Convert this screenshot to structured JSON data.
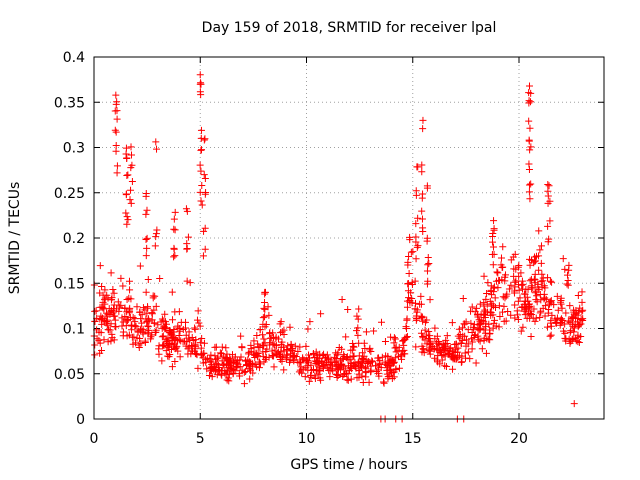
{
  "chart_data": {
    "type": "scatter",
    "title": "Day 159 of 2018, SRMTID for receiver lpal",
    "xlabel": "GPS time / hours",
    "ylabel": "SRMTID / TECUs",
    "xlim": [
      0,
      24
    ],
    "ylim": [
      0,
      0.4
    ],
    "x_ticks": [
      0,
      5,
      10,
      15,
      20
    ],
    "y_ticks": [
      0,
      0.05,
      0.1,
      0.15,
      0.2,
      0.25,
      0.3,
      0.35,
      0.4
    ],
    "x_tick_labels": [
      "0",
      "5",
      "10",
      "15",
      "20"
    ],
    "y_tick_labels": [
      "0",
      "0.05",
      "0.1",
      "0.15",
      "0.2",
      "0.25",
      "0.3",
      "0.35",
      "0.4"
    ],
    "marker": "+",
    "marker_color": "#ff0000",
    "grid": true,
    "series": [
      {
        "name": "SRMTID",
        "trend_profile": {
          "x": [
            0,
            0.5,
            1,
            1.5,
            2,
            2.5,
            3,
            3.5,
            4,
            4.5,
            5,
            5.5,
            6,
            6.5,
            7,
            7.5,
            8,
            8.5,
            9,
            9.5,
            10,
            10.5,
            11,
            11.5,
            12,
            12.5,
            13,
            13.5,
            14,
            14.5,
            15,
            15.5,
            16,
            16.5,
            17,
            17.5,
            18,
            18.5,
            19,
            19.5,
            20,
            20.5,
            21,
            21.5,
            22,
            22.5,
            23
          ],
          "y": [
            0.1,
            0.11,
            0.12,
            0.12,
            0.1,
            0.11,
            0.1,
            0.09,
            0.09,
            0.08,
            0.08,
            0.06,
            0.06,
            0.06,
            0.06,
            0.065,
            0.08,
            0.08,
            0.075,
            0.07,
            0.06,
            0.06,
            0.06,
            0.06,
            0.06,
            0.06,
            0.06,
            0.055,
            0.06,
            0.07,
            0.15,
            0.09,
            0.08,
            0.075,
            0.07,
            0.09,
            0.1,
            0.11,
            0.14,
            0.15,
            0.14,
            0.13,
            0.15,
            0.12,
            0.11,
            0.1,
            0.11
          ]
        },
        "bursts": [
          {
            "x": 1.05,
            "values": [
              0.36,
              0.35,
              0.34,
              0.32,
              0.3,
              0.28
            ]
          },
          {
            "x": 1.55,
            "values": [
              0.29,
              0.3,
              0.27,
              0.25,
              0.23,
              0.22
            ]
          },
          {
            "x": 1.75,
            "values": [
              0.3,
              0.28,
              0.26,
              0.24
            ]
          },
          {
            "x": 2.5,
            "values": [
              0.25,
              0.23,
              0.2,
              0.19
            ]
          },
          {
            "x": 2.9,
            "values": [
              0.305,
              0.21,
              0.2
            ]
          },
          {
            "x": 3.8,
            "values": [
              0.23,
              0.21,
              0.19,
              0.18
            ]
          },
          {
            "x": 4.4,
            "values": [
              0.23,
              0.2,
              0.19
            ]
          },
          {
            "x": 5.05,
            "values": [
              0.38,
              0.37,
              0.36,
              0.32,
              0.3,
              0.28,
              0.26,
              0.24
            ]
          },
          {
            "x": 5.2,
            "values": [
              0.31,
              0.27,
              0.25,
              0.21,
              0.19
            ]
          },
          {
            "x": 8.0,
            "values": [
              0.14,
              0.13,
              0.12,
              0.11
            ]
          },
          {
            "x": 12.4,
            "values": [
              0.12,
              0.11,
              0.1
            ]
          },
          {
            "x": 14.8,
            "values": [
              0.2,
              0.18,
              0.17,
              0.15,
              0.14
            ]
          },
          {
            "x": 15.2,
            "values": [
              0.28,
              0.25,
              0.22,
              0.2,
              0.19
            ]
          },
          {
            "x": 15.45,
            "values": [
              0.33,
              0.28,
              0.25,
              0.23,
              0.21
            ]
          },
          {
            "x": 15.7,
            "values": [
              0.26,
              0.2,
              0.18,
              0.17,
              0.15
            ]
          },
          {
            "x": 18.8,
            "values": [
              0.22,
              0.21,
              0.2,
              0.19,
              0.18
            ]
          },
          {
            "x": 20.5,
            "values": [
              0.37,
              0.36,
              0.35,
              0.33,
              0.31,
              0.3,
              0.28,
              0.26,
              0.25
            ]
          },
          {
            "x": 21.4,
            "values": [
              0.26,
              0.25,
              0.24,
              0.22,
              0.2
            ]
          },
          {
            "x": 22.3,
            "values": [
              0.17,
              0.16,
              0.15
            ]
          }
        ],
        "low_outliers": [
          {
            "x": 13.5,
            "y": 0.0
          },
          {
            "x": 13.7,
            "y": 0.0
          },
          {
            "x": 14.2,
            "y": 0.0
          },
          {
            "x": 14.5,
            "y": 0.0
          },
          {
            "x": 17.1,
            "y": 0.0
          },
          {
            "x": 17.4,
            "y": 0.0
          },
          {
            "x": 22.6,
            "y": 0.017
          }
        ]
      }
    ]
  }
}
